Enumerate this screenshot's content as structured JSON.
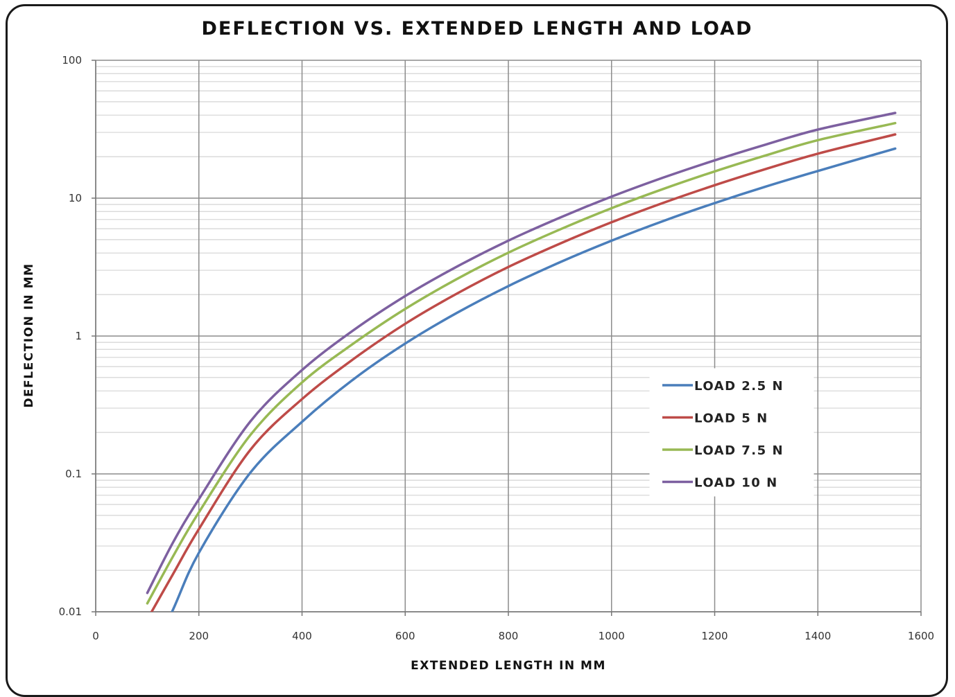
{
  "chart_data": {
    "type": "line",
    "title": "DEFLECTION VS. EXTENDED LENGTH AND LOAD",
    "xlabel": "EXTENDED LENGTH IN MM",
    "ylabel": "DEFLECTION IN MM",
    "xlim": [
      0,
      1600
    ],
    "ylim": [
      0.01,
      100
    ],
    "yscale": "log",
    "x_ticks": [
      "0",
      "200",
      "400",
      "600",
      "800",
      "1000",
      "1200",
      "1400",
      "1600"
    ],
    "y_ticks": [
      "0.01",
      "0.1",
      "1",
      "10",
      "100"
    ],
    "grid": true,
    "legend_position": "right",
    "x": [
      100,
      150,
      200,
      300,
      400,
      500,
      600,
      700,
      800,
      900,
      1000,
      1100,
      1200,
      1300,
      1400,
      1550
    ],
    "series": [
      {
        "name": "LOAD 2.5 N",
        "color": "#4a7ebb",
        "values": [
          0.0041,
          0.0104,
          0.0268,
          0.1022,
          0.2388,
          0.4866,
          0.8827,
          1.4703,
          2.3035,
          3.4273,
          4.9148,
          6.8188,
          9.2116,
          12.1635,
          15.7473,
          22.9
        ]
      },
      {
        "name": "LOAD 5 N",
        "color": "#be4b48",
        "values": [
          0.0088,
          0.0188,
          0.0398,
          0.1498,
          0.3488,
          0.6826,
          1.2276,
          2.0286,
          3.1695,
          4.6796,
          6.6824,
          9.2373,
          12.4162,
          16.3136,
          21.0227,
          29.0
        ]
      },
      {
        "name": "LOAD 7.5 N",
        "color": "#98b954",
        "values": [
          0.0115,
          0.0253,
          0.0527,
          0.1918,
          0.4613,
          0.8841,
          1.5727,
          2.5877,
          4.0238,
          5.9297,
          8.4545,
          11.6525,
          15.6254,
          20.4787,
          26.3372,
          35.0
        ]
      },
      {
        "name": "LOAD 10 N",
        "color": "#7d60a0",
        "values": [
          0.0137,
          0.0319,
          0.0656,
          0.2406,
          0.5664,
          1.1048,
          1.9516,
          3.1839,
          4.9219,
          7.2258,
          10.2606,
          14.0769,
          18.8064,
          24.5484,
          31.4415,
          41.5
        ]
      }
    ]
  }
}
